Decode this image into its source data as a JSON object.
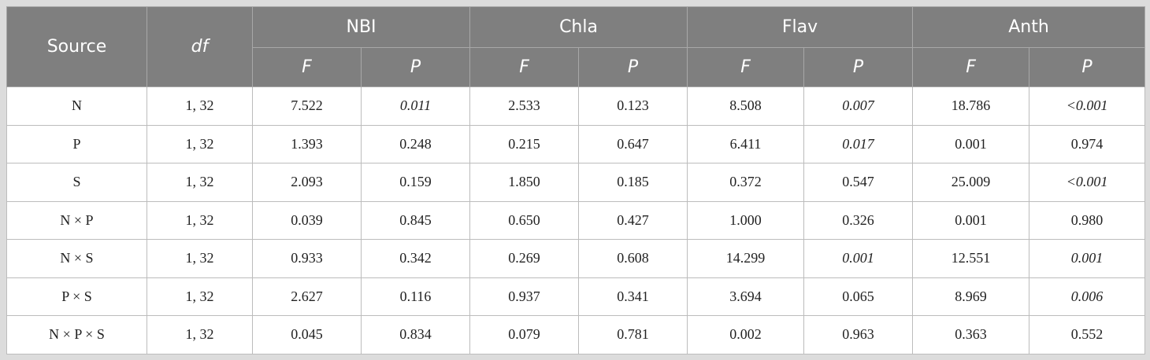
{
  "table": {
    "headers": {
      "source": "Source",
      "df": "df",
      "groups": [
        "NBI",
        "Chla",
        "Flav",
        "Anth"
      ],
      "sub": [
        "F",
        "P"
      ]
    },
    "rows": [
      {
        "source": "N",
        "df": "1, 32",
        "values": [
          "7.522",
          "0.011",
          "2.533",
          "0.123",
          "8.508",
          "0.007",
          "18.786",
          "<0.001"
        ],
        "italic": [
          false,
          true,
          false,
          false,
          false,
          true,
          false,
          true
        ]
      },
      {
        "source": "P",
        "df": "1, 32",
        "values": [
          "1.393",
          "0.248",
          "0.215",
          "0.647",
          "6.411",
          "0.017",
          "0.001",
          "0.974"
        ],
        "italic": [
          false,
          false,
          false,
          false,
          false,
          true,
          false,
          false
        ]
      },
      {
        "source": "S",
        "df": "1, 32",
        "values": [
          "2.093",
          "0.159",
          "1.850",
          "0.185",
          "0.372",
          "0.547",
          "25.009",
          "<0.001"
        ],
        "italic": [
          false,
          false,
          false,
          false,
          false,
          false,
          false,
          true
        ]
      },
      {
        "source": "N × P",
        "df": "1, 32",
        "values": [
          "0.039",
          "0.845",
          "0.650",
          "0.427",
          "1.000",
          "0.326",
          "0.001",
          "0.980"
        ],
        "italic": [
          false,
          false,
          false,
          false,
          false,
          false,
          false,
          false
        ]
      },
      {
        "source": "N × S",
        "df": "1, 32",
        "values": [
          "0.933",
          "0.342",
          "0.269",
          "0.608",
          "14.299",
          "0.001",
          "12.551",
          "0.001"
        ],
        "italic": [
          false,
          false,
          false,
          false,
          false,
          true,
          false,
          true
        ]
      },
      {
        "source": "P × S",
        "df": "1, 32",
        "values": [
          "2.627",
          "0.116",
          "0.937",
          "0.341",
          "3.694",
          "0.065",
          "8.969",
          "0.006"
        ],
        "italic": [
          false,
          false,
          false,
          false,
          false,
          false,
          false,
          true
        ]
      },
      {
        "source": "N × P × S",
        "df": "1, 32",
        "values": [
          "0.045",
          "0.834",
          "0.079",
          "0.781",
          "0.002",
          "0.963",
          "0.363",
          "0.552"
        ],
        "italic": [
          false,
          false,
          false,
          false,
          false,
          false,
          false,
          false
        ]
      }
    ]
  }
}
